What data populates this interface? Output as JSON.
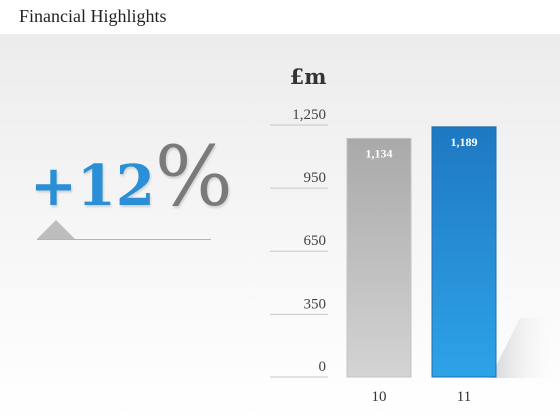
{
  "header": {
    "title": "Financial Highlights"
  },
  "headline": {
    "value": "+12",
    "symbol": "%"
  },
  "chart_data": {
    "type": "bar",
    "unit_label": "£m",
    "categories": [
      "10",
      "11"
    ],
    "values": [
      1134,
      1189
    ],
    "value_labels": [
      "1,134",
      "1,189"
    ],
    "y_ticks": [
      0,
      350,
      650,
      950,
      1250
    ],
    "y_tick_labels": [
      "0",
      "350",
      "650",
      "950",
      "1,250"
    ],
    "ylim": [
      0,
      1250
    ],
    "bar_colors": [
      "#b3b3b3",
      "#2b8fd6"
    ],
    "grid": true
  }
}
